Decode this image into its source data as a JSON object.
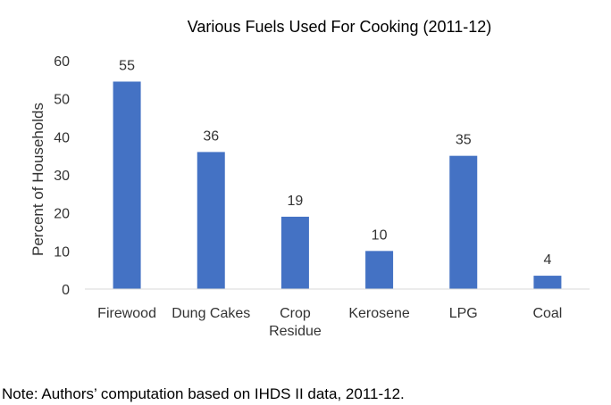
{
  "chart_data": {
    "type": "bar",
    "title": "Various Fuels Used For Cooking (2011-12)",
    "xlabel": "",
    "ylabel": "Percent of Households",
    "categories": [
      [
        "Firewood"
      ],
      [
        "Dung Cakes"
      ],
      [
        "Crop",
        "Residue"
      ],
      [
        "Kerosene"
      ],
      [
        "LPG"
      ],
      [
        "Coal"
      ]
    ],
    "values": [
      54.5,
      36,
      19,
      10,
      35,
      3.5
    ],
    "data_labels": [
      "55",
      "36",
      "19",
      "10",
      "35",
      "4"
    ],
    "ylim": [
      0,
      60
    ],
    "yticks": [
      0,
      10,
      20,
      30,
      40,
      50,
      60
    ],
    "grid": false,
    "legend": "none",
    "bar_color": "#4472c4"
  },
  "note": "Note: Authors’ computation based on IHDS II data, 2011-12."
}
